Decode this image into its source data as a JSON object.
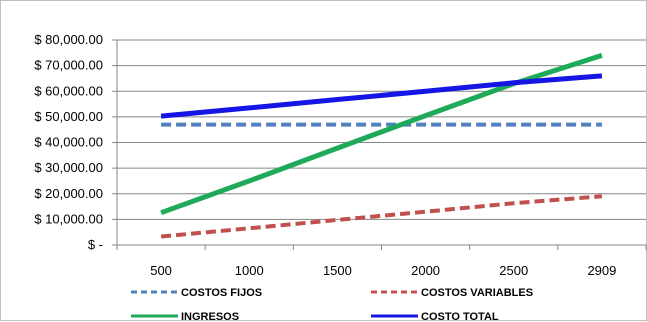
{
  "chart_data": {
    "type": "line",
    "title": "",
    "xlabel": "",
    "ylabel": "",
    "categories": [
      "500",
      "1000",
      "1500",
      "2000",
      "2500",
      "2909"
    ],
    "x": [
      500,
      1000,
      1500,
      2000,
      2500,
      2909
    ],
    "ylim": [
      0,
      80000
    ],
    "yticks": [
      0,
      10000,
      20000,
      30000,
      40000,
      50000,
      60000,
      70000,
      80000
    ],
    "ytick_labels": [
      "$ -",
      "$ 10,000.00",
      "$ 20,000.00",
      "$ 30,000.00",
      "$ 40,000.00",
      "$ 50,000.00",
      "$ 60,000.00",
      "$ 70,000.00",
      "$ 80,000.00"
    ],
    "grid": "horizontal",
    "legend_position": "bottom",
    "series": [
      {
        "name": "COSTOS FIJOS",
        "color": "#4f81bd",
        "dash": "dashed",
        "values": [
          47000,
          47000,
          47000,
          47000,
          47000,
          47000
        ]
      },
      {
        "name": "COSTOS VARIABLES",
        "color": "#c0504d",
        "dash": "dashed",
        "values": [
          3300,
          6500,
          9800,
          13000,
          16300,
          19000
        ]
      },
      {
        "name": "INGRESOS",
        "color": "#1faa59",
        "dash": "solid",
        "values": [
          12600,
          25000,
          37800,
          50500,
          63000,
          74000
        ]
      },
      {
        "name": "COSTO TOTAL",
        "color": "#1515e6",
        "dash": "solid",
        "values": [
          50300,
          53500,
          56800,
          60000,
          63300,
          66000
        ]
      }
    ]
  }
}
